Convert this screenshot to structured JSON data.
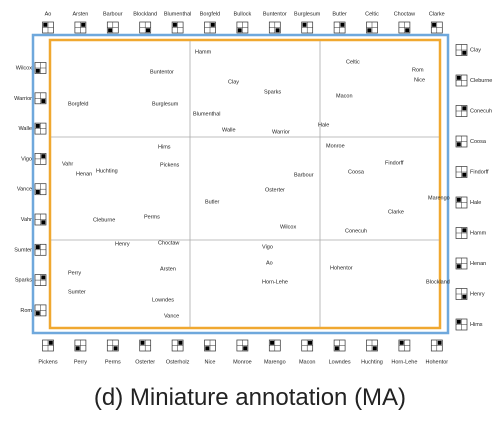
{
  "boundary": {
    "top": [
      "Ao",
      "Arsten",
      "Barbour",
      "Blockland",
      "Blumenthal",
      "Borgfeld",
      "Bullock",
      "Buntentor",
      "Burglesum",
      "Butler",
      "Celtic",
      "Choctaw",
      "Clarke"
    ],
    "right": [
      "Clay",
      "Cleburne",
      "Conecuh",
      "Coosa",
      "Findorff",
      "Hale",
      "Hamm",
      "Henan",
      "Henry",
      "Hims"
    ],
    "left": [
      "Wilcox",
      "Warrior",
      "Walle",
      "Vigo",
      "Vance",
      "Vahr",
      "Sumter",
      "Sparks",
      "Rom"
    ],
    "bottom": [
      "Pickens",
      "Perry",
      "Perms",
      "Osterter",
      "Osterholz",
      "Nice",
      "Monroe",
      "Marengo",
      "Macon",
      "Lowndes",
      "Huchting",
      "Horn-Lehe",
      "Hohentor"
    ]
  },
  "interior": [
    "Hamm",
    "Clay",
    "Sparks",
    "Buntentor",
    "Burglesum",
    "Blumenthal",
    "Walle",
    "Warrior",
    "Borgfeld",
    "Celtic",
    "Rom",
    "Nice",
    "Macon",
    "Hale",
    "Hims",
    "Vahr",
    "Henan",
    "Huchting",
    "Pickens",
    "Monroe",
    "Coosa",
    "Findorff",
    "Barbour",
    "Osterter",
    "Butler",
    "Marengo",
    "Clarke",
    "Perms",
    "Cleburne",
    "Wilcox",
    "Conecuh",
    "Henry",
    "Choctaw",
    "Vigo",
    "Ao",
    "Horn-Lehe",
    "Arsten",
    "Hohentor",
    "Blockland",
    "Perry",
    "Sumter",
    "Lowndes",
    "Vance"
  ],
  "caption": "(d)  Miniature annotation (MA)"
}
